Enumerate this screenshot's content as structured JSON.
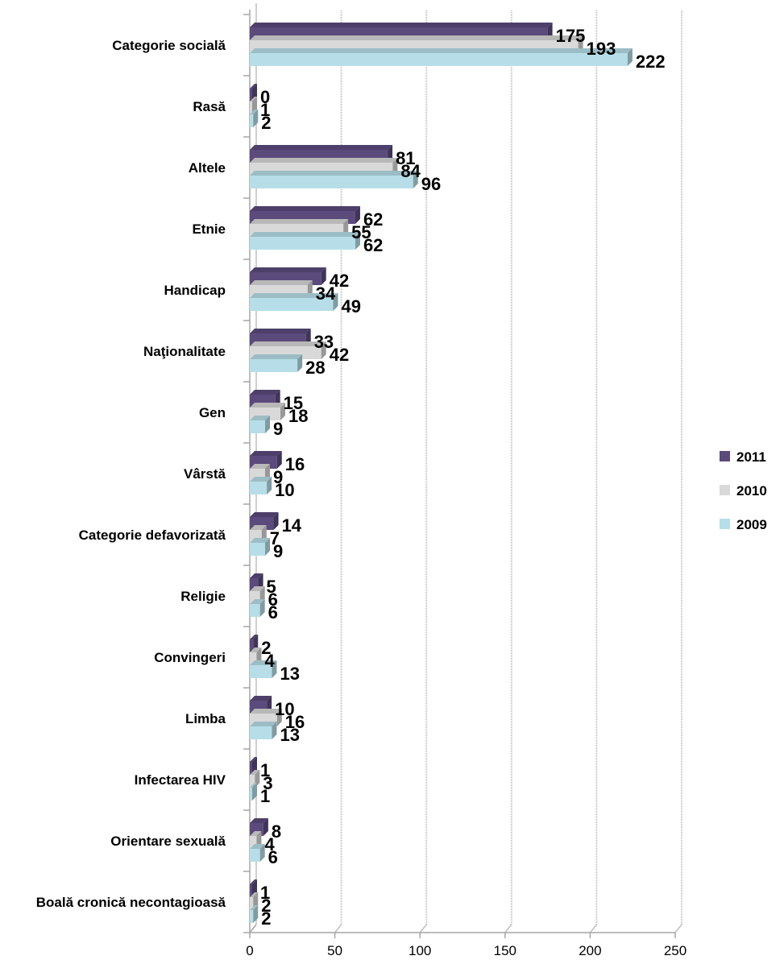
{
  "chart_data": {
    "type": "bar",
    "orientation": "horizontal",
    "categories": [
      "Categorie socială",
      "Rasă",
      "Altele",
      "Etnie",
      "Handicap",
      "Naţionalitate",
      "Gen",
      "Vârstă",
      "Categorie defavorizată",
      "Religie",
      "Convingeri",
      "Limba",
      "Infectarea HIV",
      "Orientare sexuală",
      "Boală cronică necontagioasă"
    ],
    "series": [
      {
        "name": "2011",
        "color": "#5b4a7c",
        "values": [
          175,
          0,
          81,
          62,
          42,
          33,
          15,
          16,
          14,
          5,
          2,
          10,
          1,
          8,
          1
        ]
      },
      {
        "name": "2010",
        "color": "#d9d9d9",
        "values": [
          193,
          1,
          84,
          55,
          34,
          42,
          18,
          9,
          7,
          6,
          4,
          16,
          3,
          4,
          2
        ]
      },
      {
        "name": "2009",
        "color": "#b7dee8",
        "values": [
          222,
          2,
          96,
          62,
          49,
          28,
          9,
          10,
          9,
          6,
          13,
          13,
          1,
          6,
          2
        ]
      }
    ],
    "xticks": [
      "0",
      "50",
      "100",
      "150",
      "200",
      "250"
    ],
    "xlim": [
      0,
      250
    ],
    "grid": true,
    "legend": "right",
    "title": "",
    "xlabel": "",
    "ylabel": ""
  }
}
